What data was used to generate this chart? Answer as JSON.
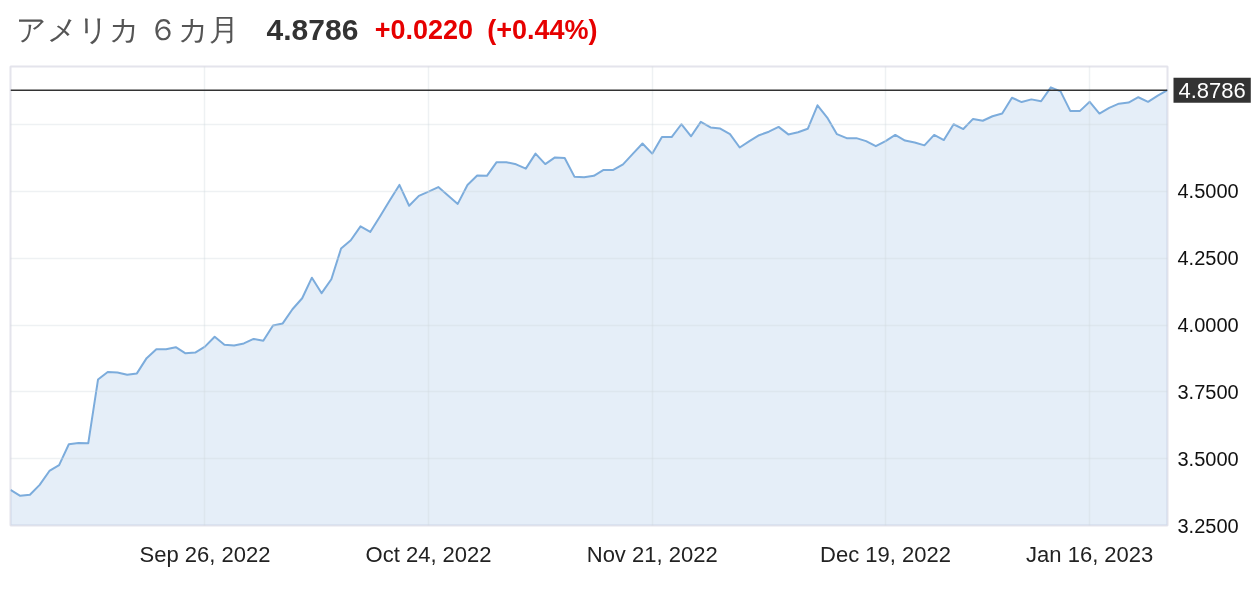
{
  "chart_data": {
    "type": "area",
    "title": "アメリカ ６カ月",
    "annotations": [
      "4.8786",
      "+0.0220",
      "(+0.44%)"
    ],
    "categories": [
      null,
      null,
      null,
      null,
      null,
      null,
      null,
      null,
      null,
      null,
      null,
      null,
      null,
      null,
      null,
      null,
      null,
      null,
      null,
      null,
      "Sep 26, 2022",
      null,
      null,
      null,
      null,
      null,
      null,
      null,
      null,
      null,
      null,
      null,
      null,
      null,
      null,
      null,
      null,
      null,
      null,
      null,
      null,
      null,
      null,
      "Oct 24, 2022",
      null,
      null,
      null,
      null,
      null,
      null,
      null,
      null,
      null,
      null,
      null,
      null,
      null,
      null,
      null,
      null,
      null,
      null,
      null,
      null,
      null,
      null,
      "Nov 21, 2022",
      null,
      null,
      null,
      null,
      null,
      null,
      null,
      null,
      null,
      null,
      null,
      null,
      null,
      null,
      null,
      null,
      null,
      null,
      null,
      null,
      null,
      null,
      null,
      "Dec 19, 2022",
      null,
      null,
      null,
      null,
      null,
      null,
      null,
      null,
      null,
      null,
      null,
      null,
      null,
      null,
      null,
      null,
      null,
      null,
      null,
      null,
      "Jan 16, 2023",
      null,
      null,
      null,
      null,
      null,
      null,
      null,
      null
    ],
    "series": [
      {
        "color": "#7cacdc",
        "values": [
          3.383,
          3.361,
          3.365,
          3.402,
          3.454,
          3.476,
          3.554,
          3.559,
          3.558,
          3.796,
          3.824,
          3.822,
          3.814,
          3.819,
          3.876,
          3.909,
          3.909,
          3.917,
          3.894,
          3.897,
          3.919,
          3.956,
          3.926,
          3.923,
          3.931,
          3.948,
          3.941,
          3.998,
          4.006,
          4.059,
          4.1,
          4.177,
          4.119,
          4.171,
          4.286,
          4.317,
          4.369,
          4.348,
          4.406,
          4.466,
          4.524,
          4.446,
          4.483,
          4.499,
          4.516,
          4.484,
          4.453,
          4.524,
          4.559,
          4.558,
          4.609,
          4.609,
          4.601,
          4.585,
          4.641,
          4.602,
          4.627,
          4.625,
          4.555,
          4.553,
          4.558,
          4.58,
          4.58,
          4.601,
          4.64,
          4.679,
          4.641,
          4.703,
          4.703,
          4.751,
          4.706,
          4.76,
          4.739,
          4.735,
          4.714,
          4.664,
          4.688,
          4.71,
          4.723,
          4.741,
          4.713,
          4.721,
          4.734,
          4.822,
          4.776,
          4.714,
          4.699,
          4.699,
          4.688,
          4.669,
          4.688,
          4.711,
          4.69,
          4.683,
          4.672,
          4.711,
          4.692,
          4.751,
          4.733,
          4.771,
          4.764,
          4.781,
          4.791,
          4.85,
          4.834,
          4.844,
          4.837,
          4.889,
          4.874,
          4.801,
          4.801,
          4.835,
          4.791,
          4.812,
          4.828,
          4.832,
          4.852,
          4.835,
          4.858,
          4.879
        ]
      }
    ],
    "ylim": [
      3.25,
      4.967
    ],
    "yticks": [
      {
        "value": 3.25,
        "label": "3.2500"
      },
      {
        "value": 3.5,
        "label": "3.5000"
      },
      {
        "value": 3.75,
        "label": "3.7500"
      },
      {
        "value": 4.0,
        "label": "4.0000"
      },
      {
        "value": 4.25,
        "label": "4.2500"
      },
      {
        "value": 4.5,
        "label": "4.5000"
      },
      {
        "value": 4.75,
        "label": null
      }
    ],
    "ref_lines": [
      {
        "axis": "y",
        "value": 4.8786,
        "label": "4.8786",
        "color": "#333333"
      }
    ],
    "grid": true
  }
}
